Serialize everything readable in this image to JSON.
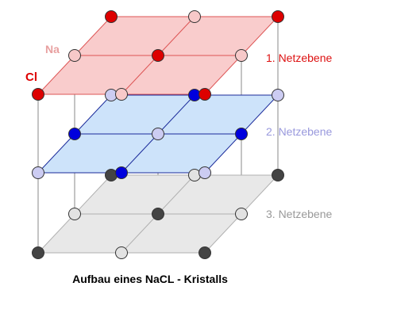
{
  "labels": {
    "na": "Na",
    "cl": "Cl",
    "plane1": "1. Netzebene",
    "plane2": "2. Netzebene",
    "plane3": "3. Netzebene"
  },
  "caption": "Aufbau eines NaCL - Kristalls",
  "colors": {
    "na_label": "#e8a0a0",
    "cl_label": "#dd0000",
    "plane1": "#dd1111",
    "plane2": "#9999dd",
    "plane3": "#999999",
    "plane1_fill": "#f9cccc",
    "plane1_edge": "#dd5555",
    "plane2_fill": "#cde3fa",
    "plane2_edge": "#1a2a9a",
    "plane3_fill": "#e8e8e8",
    "plane3_edge": "#b0b0b0",
    "na_top": "#f7c9c9",
    "cl_top": "#dd0000",
    "na_mid": "#ccccf2",
    "cl_mid": "#0000dd",
    "na_bot": "#e2e2e2",
    "cl_bot": "#444444",
    "vertical_line": "#888888"
  }
}
